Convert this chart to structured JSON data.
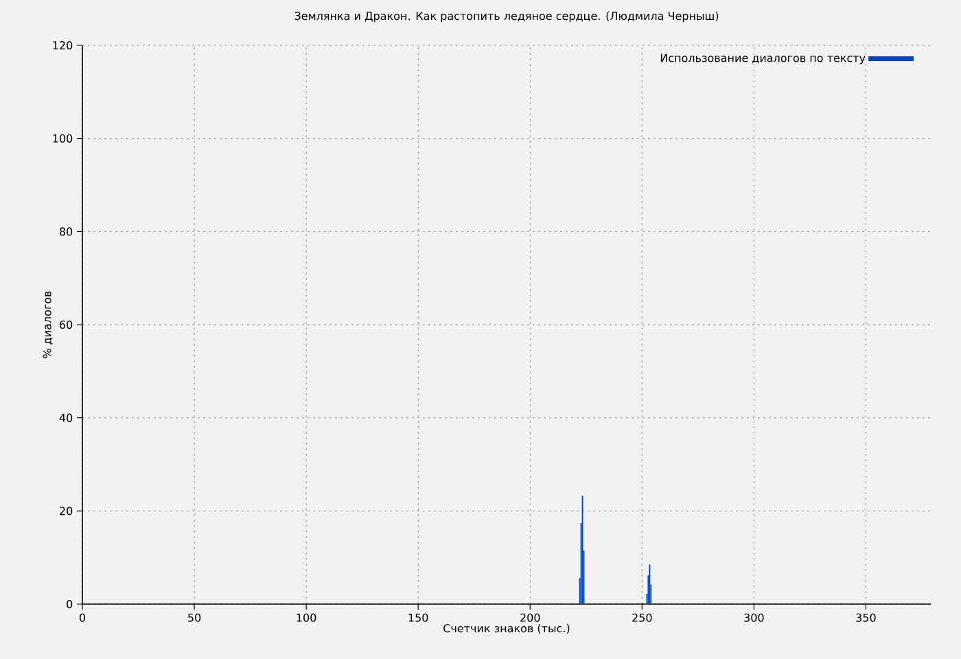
{
  "chart_data": {
    "type": "bar",
    "title": "Землянка и Дракон. Как растопить ледяное сердце. (Людмила Черныш)",
    "xlabel": "Счетчик знаков (тыс.)",
    "ylabel": "% диалогов",
    "x": [
      222.2,
      222.8,
      223.4,
      224.0,
      252.2,
      252.8,
      253.4,
      254.0
    ],
    "series": [
      {
        "name": "Использование диалогов по тексту",
        "color": "#0b47a8",
        "values": [
          5.6,
          17.4,
          23.3,
          11.5,
          2.2,
          6.2,
          8.5,
          4.2
        ]
      }
    ],
    "xlim": [
      0,
      379
    ],
    "ylim": [
      0,
      120
    ],
    "xticks": [
      0,
      50,
      100,
      150,
      200,
      250,
      300,
      350
    ],
    "yticks": [
      0,
      20,
      40,
      60,
      80,
      100,
      120
    ],
    "grid": true,
    "legend": "top right"
  }
}
